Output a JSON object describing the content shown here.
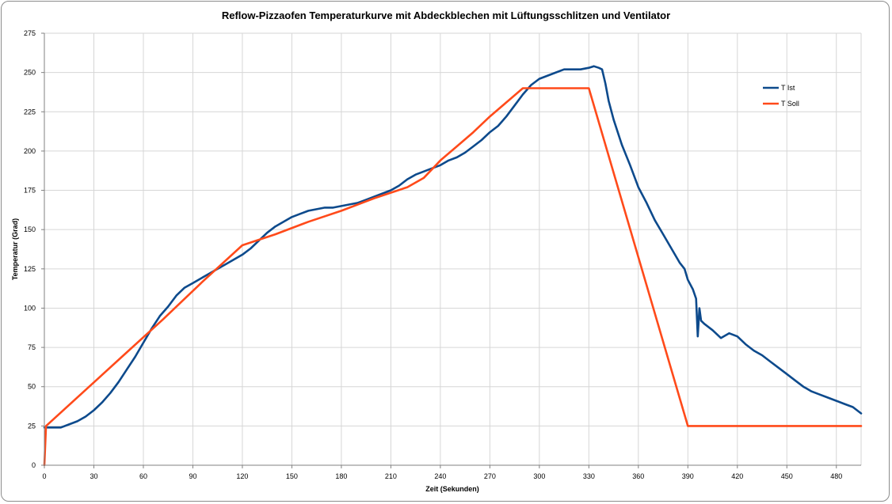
{
  "chart_data": {
    "type": "line",
    "title": "Reflow-Pizzaofen Temperaturkurve mit Abdeckblechen mit Lüftungsschlitzen und Ventilator",
    "xlabel": "Zeit (Sekunden)",
    "ylabel": "Temperatur (Grad)",
    "xlim": [
      0,
      495
    ],
    "ylim": [
      0,
      275
    ],
    "xticks": [
      0,
      30,
      60,
      90,
      120,
      150,
      180,
      210,
      240,
      270,
      300,
      330,
      360,
      390,
      420,
      450,
      480
    ],
    "yticks": [
      0,
      25,
      50,
      75,
      100,
      125,
      150,
      175,
      200,
      225,
      250,
      275
    ],
    "grid": true,
    "legend_position": "right",
    "series": [
      {
        "name": "T Ist",
        "color": "#0d4a8c",
        "x": [
          0,
          1,
          5,
          10,
          15,
          20,
          25,
          30,
          35,
          40,
          45,
          50,
          55,
          60,
          65,
          70,
          75,
          80,
          85,
          90,
          95,
          100,
          105,
          110,
          115,
          120,
          125,
          130,
          135,
          140,
          145,
          150,
          155,
          160,
          165,
          170,
          175,
          180,
          185,
          190,
          195,
          200,
          205,
          210,
          215,
          220,
          225,
          230,
          235,
          240,
          245,
          250,
          255,
          260,
          265,
          270,
          275,
          280,
          285,
          290,
          295,
          300,
          305,
          310,
          315,
          320,
          325,
          330,
          333,
          336,
          338,
          340,
          342,
          345,
          350,
          355,
          360,
          365,
          370,
          375,
          380,
          385,
          388,
          390,
          393,
          395,
          396,
          397,
          398,
          400,
          405,
          410,
          415,
          420,
          425,
          430,
          435,
          440,
          445,
          450,
          455,
          460,
          465,
          470,
          475,
          480,
          485,
          490,
          495
        ],
        "values": [
          24,
          24,
          24,
          24,
          26,
          28,
          31,
          35,
          40,
          46,
          53,
          61,
          69,
          78,
          87,
          95,
          101,
          108,
          113,
          116,
          119,
          122,
          125,
          128,
          131,
          134,
          138,
          143,
          148,
          152,
          155,
          158,
          160,
          162,
          163,
          164,
          164,
          165,
          166,
          167,
          169,
          171,
          173,
          175,
          178,
          182,
          185,
          187,
          189,
          191,
          194,
          196,
          199,
          203,
          207,
          212,
          216,
          222,
          229,
          236,
          242,
          246,
          248,
          250,
          252,
          252,
          252,
          253,
          254,
          253,
          252,
          243,
          232,
          220,
          204,
          191,
          177,
          167,
          156,
          147,
          138,
          129,
          125,
          118,
          112,
          106,
          82,
          100,
          92,
          90,
          86,
          81,
          84,
          82,
          77,
          73,
          70,
          66,
          62,
          58,
          54,
          50,
          47,
          45,
          43,
          41,
          39,
          37,
          33
        ]
      },
      {
        "name": "T Soll",
        "color": "#ff4a1a",
        "x": [
          0,
          1,
          24,
          48,
          72,
          96,
          120,
          140,
          160,
          180,
          200,
          220,
          230,
          240,
          250,
          260,
          270,
          280,
          290,
          300,
          310,
          320,
          330,
          390,
          420,
          450,
          480,
          495
        ],
        "values": [
          0,
          25,
          47,
          70,
          93,
          117,
          140,
          147,
          155,
          162,
          170,
          177,
          183,
          194,
          203,
          212,
          222,
          231,
          240,
          240,
          240,
          240,
          240,
          25,
          25,
          25,
          25,
          25
        ]
      }
    ]
  }
}
